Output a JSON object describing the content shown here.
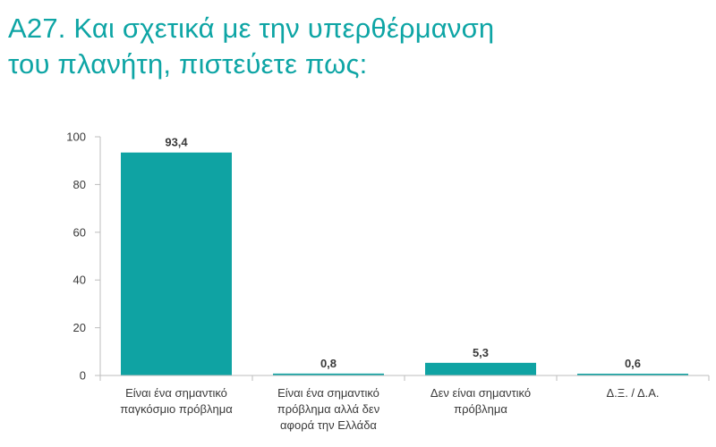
{
  "page": {
    "title_lines": [
      "A27. Και σχετικά με την υπερθέρμανση",
      "του πλανήτη, πιστεύετε πως:"
    ]
  },
  "colors": {
    "accent": "#0ea5a5",
    "bar": "#0fa3a3",
    "axis": "#bdbdbd",
    "text": "#3a3a3a"
  },
  "chart_data": {
    "type": "bar",
    "title": "A27. Και σχετικά με την υπερθέρμανση του πλανήτη, πιστεύετε πως:",
    "categories": [
      "Είναι ένα σημαντικό παγκόσμιο πρόβλημα",
      "Είναι ένα σημαντικό πρόβλημα αλλά δεν αφορά την Ελλάδα",
      "Δεν είναι σημαντικό πρόβλημα",
      "Δ.Ξ. / Δ.Α."
    ],
    "category_label_lines": [
      [
        "Είναι ένα σημαντικό",
        "παγκόσμιο πρόβλημα"
      ],
      [
        "Είναι ένα σημαντικό",
        "πρόβλημα αλλά δεν",
        "αφορά την Ελλάδα"
      ],
      [
        "Δεν είναι σημαντικό",
        "πρόβλημα"
      ],
      [
        "Δ.Ξ. / Δ.Α."
      ]
    ],
    "values": [
      93.4,
      0.8,
      5.3,
      0.6
    ],
    "value_labels": [
      "93,4",
      "0,8",
      "5,3",
      "0,6"
    ],
    "xlabel": "",
    "ylabel": "",
    "ylim": [
      0,
      100
    ],
    "yticks": [
      0,
      20,
      40,
      60,
      80,
      100
    ],
    "grid": false,
    "legend": "none"
  }
}
